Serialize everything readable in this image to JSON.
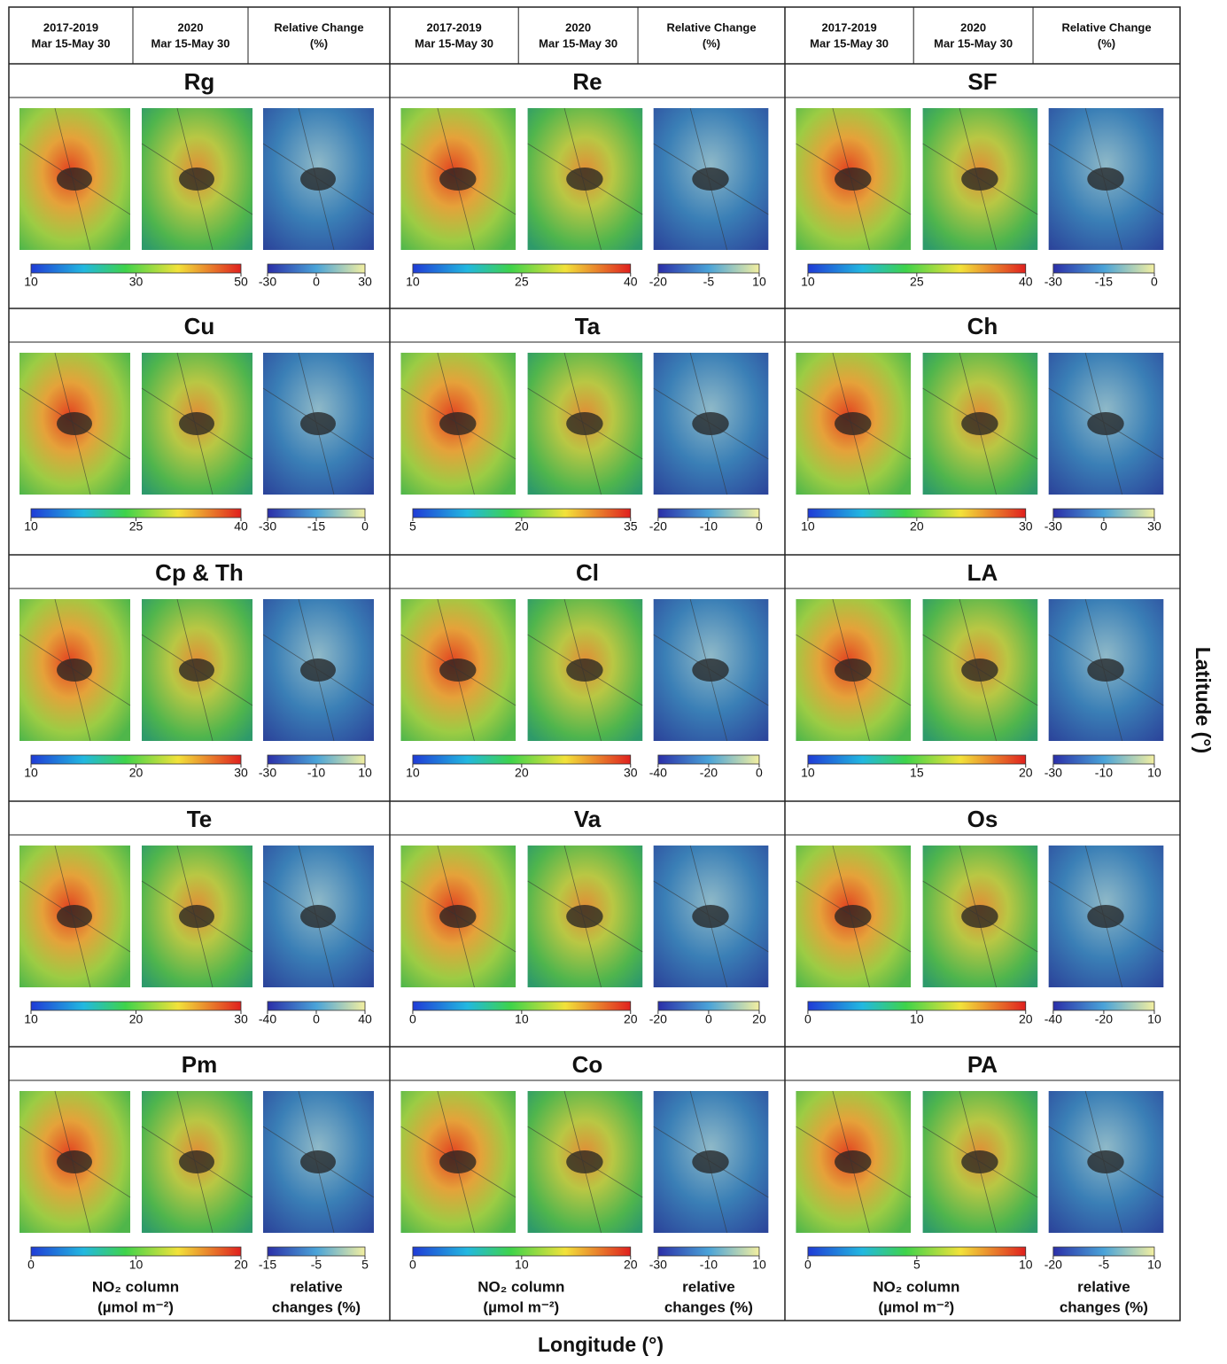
{
  "header_groups": [
    [
      [
        "2017-2019",
        "Mar 15-May 30"
      ],
      [
        "2020",
        "Mar 15-May 30"
      ],
      [
        "Relative Change",
        "(%)"
      ]
    ],
    [
      [
        "2017-2019",
        "Mar 15-May 30"
      ],
      [
        "2020",
        "Mar 15-May 30"
      ],
      [
        "Relative Change",
        "(%)"
      ]
    ],
    [
      [
        "2017-2019",
        "Mar 15-May 30"
      ],
      [
        "2020",
        "Mar 15-May 30"
      ],
      [
        "Relative Change",
        "(%)"
      ]
    ]
  ],
  "panels": [
    {
      "name": "Rg",
      "abs_ticks": [
        10,
        30,
        50
      ],
      "rel_ticks": [
        -30,
        0,
        30
      ]
    },
    {
      "name": "Re",
      "abs_ticks": [
        10,
        25,
        40
      ],
      "rel_ticks": [
        -20,
        -5,
        10
      ]
    },
    {
      "name": "SF",
      "abs_ticks": [
        10,
        25,
        40
      ],
      "rel_ticks": [
        -30,
        -15,
        0
      ]
    },
    {
      "name": "Cu",
      "abs_ticks": [
        10,
        25,
        40
      ],
      "rel_ticks": [
        -30,
        -15,
        0
      ]
    },
    {
      "name": "Ta",
      "abs_ticks": [
        5,
        20,
        35
      ],
      "rel_ticks": [
        -20,
        -10,
        0
      ]
    },
    {
      "name": "Ch",
      "abs_ticks": [
        10,
        20,
        30
      ],
      "rel_ticks": [
        -30,
        0,
        30
      ]
    },
    {
      "name": "Cp & Th",
      "abs_ticks": [
        10,
        20,
        30
      ],
      "rel_ticks": [
        -30,
        -10,
        10
      ]
    },
    {
      "name": "Cl",
      "abs_ticks": [
        10,
        20,
        30
      ],
      "rel_ticks": [
        -40,
        -20,
        0
      ]
    },
    {
      "name": "LA",
      "abs_ticks": [
        10,
        15,
        20
      ],
      "rel_ticks": [
        -30,
        -10,
        10
      ]
    },
    {
      "name": "Te",
      "abs_ticks": [
        10,
        20,
        30
      ],
      "rel_ticks": [
        -40,
        0,
        40
      ]
    },
    {
      "name": "Va",
      "abs_ticks": [
        0,
        10,
        20
      ],
      "rel_ticks": [
        -20,
        0,
        20
      ]
    },
    {
      "name": "Os",
      "abs_ticks": [
        0,
        10,
        20
      ],
      "rel_ticks": [
        -40,
        -20,
        10
      ]
    },
    {
      "name": "Pm",
      "abs_ticks": [
        0,
        10,
        20
      ],
      "rel_ticks": [
        -15,
        -5,
        5
      ]
    },
    {
      "name": "Co",
      "abs_ticks": [
        0,
        10,
        20
      ],
      "rel_ticks": [
        -30,
        -10,
        10
      ]
    },
    {
      "name": "PA",
      "abs_ticks": [
        0,
        5,
        10
      ],
      "rel_ticks": [
        -20,
        -5,
        10
      ]
    }
  ],
  "footers": [
    {
      "abs_label": [
        "NO₂ column",
        "(µmol m⁻²)"
      ],
      "rel_label": [
        "relative",
        "changes (%)"
      ]
    },
    {
      "abs_label": [
        "NO₂ column",
        "(µmol m⁻²)"
      ],
      "rel_label": [
        "relative",
        "changes (%)"
      ]
    },
    {
      "abs_label": [
        "NO₂ column",
        "(µmol m⁻²)"
      ],
      "rel_label": [
        "relative",
        "changes (%)"
      ]
    }
  ],
  "y_axis_label": "Latitude (°)",
  "x_axis_label": "Longitude (°)"
}
